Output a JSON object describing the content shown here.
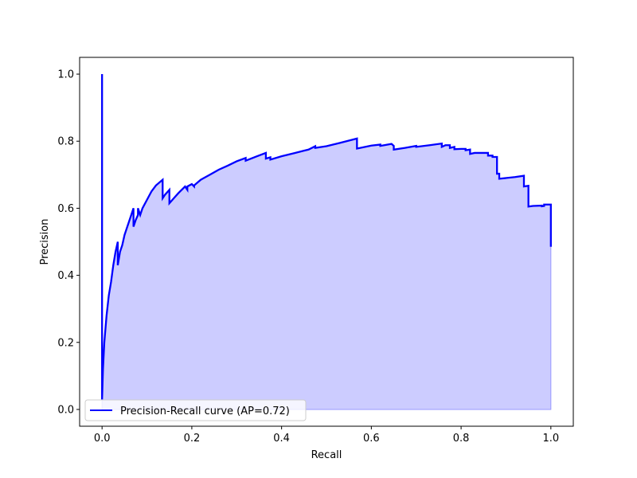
{
  "chart_data": {
    "type": "line",
    "title": "",
    "xlabel": "Recall",
    "ylabel": "Precision",
    "xlim": [
      -0.05,
      1.05
    ],
    "ylim": [
      -0.05,
      1.05
    ],
    "x_ticks": [
      0.0,
      0.2,
      0.4,
      0.6,
      0.8,
      1.0
    ],
    "y_ticks": [
      0.0,
      0.2,
      0.4,
      0.6,
      0.8,
      1.0
    ],
    "x_tick_labels": [
      "0.0",
      "0.2",
      "0.4",
      "0.6",
      "0.8",
      "1.0"
    ],
    "y_tick_labels": [
      "0.0",
      "0.2",
      "0.4",
      "0.6",
      "0.8",
      "1.0"
    ],
    "grid": false,
    "legend_position": "lower-left",
    "fill_under_curve": true,
    "colors": {
      "line": "#0000ff",
      "fill": "#ccccff",
      "fill_edge": "#9999ff"
    },
    "series": [
      {
        "name": "Precision-Recall curve (AP=0.72)",
        "x": [
          0.0,
          0.0,
          0.002,
          0.005,
          0.01,
          0.015,
          0.02,
          0.025,
          0.03,
          0.035,
          0.035,
          0.04,
          0.045,
          0.05,
          0.055,
          0.06,
          0.065,
          0.07,
          0.07,
          0.075,
          0.08,
          0.08,
          0.085,
          0.09,
          0.1,
          0.11,
          0.12,
          0.135,
          0.135,
          0.14,
          0.15,
          0.15,
          0.16,
          0.17,
          0.185,
          0.19,
          0.19,
          0.2,
          0.205,
          0.205,
          0.22,
          0.24,
          0.26,
          0.28,
          0.3,
          0.32,
          0.32,
          0.345,
          0.365,
          0.365,
          0.375,
          0.375,
          0.4,
          0.43,
          0.46,
          0.475,
          0.475,
          0.5,
          0.53,
          0.568,
          0.568,
          0.6,
          0.62,
          0.62,
          0.645,
          0.65,
          0.65,
          0.675,
          0.7,
          0.7,
          0.73,
          0.757,
          0.757,
          0.765,
          0.775,
          0.775,
          0.785,
          0.785,
          0.8,
          0.81,
          0.81,
          0.82,
          0.82,
          0.83,
          0.83,
          0.86,
          0.86,
          0.87,
          0.87,
          0.88,
          0.88,
          0.885,
          0.885,
          0.92,
          0.92,
          0.94,
          0.94,
          0.95,
          0.95,
          0.96,
          0.96,
          0.98,
          0.98,
          0.985,
          0.985,
          1.0,
          1.0
        ],
        "y": [
          1.0,
          0.03,
          0.12,
          0.2,
          0.28,
          0.34,
          0.38,
          0.43,
          0.47,
          0.5,
          0.43,
          0.47,
          0.49,
          0.52,
          0.54,
          0.56,
          0.58,
          0.6,
          0.545,
          0.565,
          0.58,
          0.6,
          0.58,
          0.6,
          0.625,
          0.65,
          0.668,
          0.685,
          0.63,
          0.64,
          0.655,
          0.615,
          0.63,
          0.645,
          0.665,
          0.655,
          0.665,
          0.672,
          0.665,
          0.668,
          0.685,
          0.7,
          0.715,
          0.727,
          0.74,
          0.75,
          0.742,
          0.755,
          0.765,
          0.748,
          0.752,
          0.745,
          0.755,
          0.765,
          0.775,
          0.785,
          0.78,
          0.785,
          0.795,
          0.808,
          0.778,
          0.787,
          0.79,
          0.786,
          0.792,
          0.786,
          0.775,
          0.78,
          0.786,
          0.783,
          0.788,
          0.793,
          0.783,
          0.788,
          0.788,
          0.78,
          0.783,
          0.776,
          0.777,
          0.777,
          0.773,
          0.775,
          0.762,
          0.765,
          0.765,
          0.765,
          0.757,
          0.757,
          0.753,
          0.753,
          0.703,
          0.703,
          0.688,
          0.693,
          0.693,
          0.697,
          0.665,
          0.667,
          0.605,
          0.607,
          0.607,
          0.608,
          0.606,
          0.607,
          0.611,
          0.611,
          0.485
        ]
      }
    ]
  }
}
